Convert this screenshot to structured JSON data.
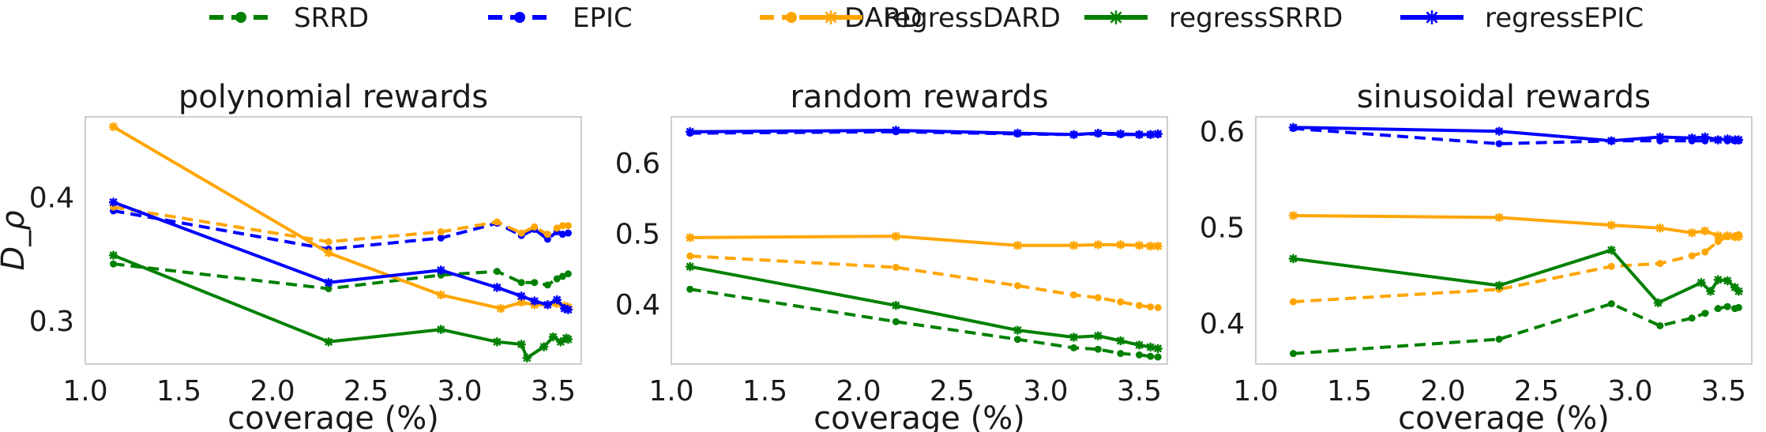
{
  "legend": [
    {
      "name": "SRRD",
      "color": "#008000",
      "dashed": true
    },
    {
      "name": "EPIC",
      "color": "#0000ff",
      "dashed": true
    },
    {
      "name": "DARD",
      "color": "#ffa500",
      "dashed": true
    },
    {
      "name": "regressDARD",
      "color": "#ffa500",
      "dashed": false
    },
    {
      "name": "regressSRRD",
      "color": "#008000",
      "dashed": false
    },
    {
      "name": "regressEPIC",
      "color": "#0000ff",
      "dashed": false
    }
  ],
  "chart_data": [
    {
      "type": "line",
      "title": "polynomial rewards",
      "xlabel": "coverage (%)",
      "ylabel": "D_ρ",
      "xlim": [
        1.0,
        3.65
      ],
      "ylim": [
        0.265,
        0.465
      ],
      "xticks": [
        "1.0",
        "1.5",
        "2.0",
        "2.5",
        "3.0",
        "3.5"
      ],
      "yticks": [
        "0.3",
        "0.4"
      ],
      "series": [
        {
          "name": "SRRD",
          "x": [
            1.15,
            2.3,
            2.9,
            3.2,
            3.33,
            3.4,
            3.47,
            3.52,
            3.55,
            3.58
          ],
          "y": [
            0.346,
            0.326,
            0.337,
            0.34,
            0.331,
            0.331,
            0.329,
            0.334,
            0.336,
            0.338
          ]
        },
        {
          "name": "EPIC",
          "x": [
            1.15,
            2.3,
            2.9,
            3.2,
            3.33,
            3.4,
            3.47,
            3.52,
            3.55,
            3.58
          ],
          "y": [
            0.389,
            0.358,
            0.367,
            0.379,
            0.369,
            0.374,
            0.366,
            0.372,
            0.37,
            0.371
          ]
        },
        {
          "name": "DARD",
          "x": [
            1.15,
            2.3,
            2.9,
            3.2,
            3.33,
            3.4,
            3.47,
            3.52,
            3.55,
            3.58
          ],
          "y": [
            0.392,
            0.364,
            0.372,
            0.38,
            0.371,
            0.376,
            0.37,
            0.375,
            0.377,
            0.377
          ]
        },
        {
          "name": "regressDARD",
          "x": [
            1.15,
            2.3,
            2.9,
            3.22,
            3.33,
            3.4,
            3.47,
            3.52,
            3.56,
            3.58
          ],
          "y": [
            0.457,
            0.355,
            0.321,
            0.31,
            0.315,
            0.313,
            0.313,
            0.314,
            0.312,
            0.311
          ]
        },
        {
          "name": "regressSRRD",
          "x": [
            1.15,
            2.3,
            2.9,
            3.2,
            3.33,
            3.36,
            3.45,
            3.5,
            3.54,
            3.57,
            3.58
          ],
          "y": [
            0.353,
            0.283,
            0.293,
            0.283,
            0.281,
            0.27,
            0.279,
            0.287,
            0.283,
            0.286,
            0.285
          ]
        },
        {
          "name": "regressEPIC",
          "x": [
            1.15,
            2.3,
            2.9,
            3.2,
            3.33,
            3.4,
            3.47,
            3.52,
            3.56,
            3.58
          ],
          "y": [
            0.396,
            0.331,
            0.341,
            0.327,
            0.32,
            0.316,
            0.313,
            0.317,
            0.31,
            0.309
          ]
        }
      ]
    },
    {
      "type": "line",
      "title": "random rewards",
      "xlabel": "coverage (%)",
      "ylabel": "",
      "xlim": [
        1.0,
        3.65
      ],
      "ylim": [
        0.315,
        0.665
      ],
      "xticks": [
        "1.0",
        "1.5",
        "2.0",
        "2.5",
        "3.0",
        "3.5"
      ],
      "yticks": [
        "0.4",
        "0.5",
        "0.6"
      ],
      "series": [
        {
          "name": "SRRD",
          "x": [
            1.1,
            2.2,
            2.85,
            3.15,
            3.28,
            3.4,
            3.5,
            3.56,
            3.6
          ],
          "y": [
            0.421,
            0.375,
            0.35,
            0.338,
            0.336,
            0.33,
            0.328,
            0.326,
            0.325
          ]
        },
        {
          "name": "EPIC",
          "x": [
            1.1,
            2.2,
            2.85,
            3.15,
            3.28,
            3.4,
            3.5,
            3.56,
            3.6
          ],
          "y": [
            0.642,
            0.644,
            0.641,
            0.64,
            0.641,
            0.64,
            0.64,
            0.64,
            0.64
          ]
        },
        {
          "name": "DARD",
          "x": [
            1.1,
            2.2,
            2.85,
            3.15,
            3.28,
            3.4,
            3.5,
            3.56,
            3.6
          ],
          "y": [
            0.468,
            0.452,
            0.426,
            0.413,
            0.409,
            0.403,
            0.398,
            0.396,
            0.395
          ]
        },
        {
          "name": "regressDARD",
          "x": [
            1.1,
            2.2,
            2.85,
            3.15,
            3.28,
            3.4,
            3.5,
            3.56,
            3.6
          ],
          "y": [
            0.494,
            0.496,
            0.483,
            0.483,
            0.484,
            0.484,
            0.483,
            0.482,
            0.482
          ]
        },
        {
          "name": "regressSRRD",
          "x": [
            1.1,
            2.2,
            2.85,
            3.15,
            3.28,
            3.4,
            3.5,
            3.56,
            3.6
          ],
          "y": [
            0.453,
            0.398,
            0.363,
            0.353,
            0.355,
            0.348,
            0.342,
            0.339,
            0.337
          ]
        },
        {
          "name": "regressEPIC",
          "x": [
            1.1,
            2.2,
            2.85,
            3.15,
            3.28,
            3.4,
            3.5,
            3.56,
            3.6
          ],
          "y": [
            0.644,
            0.646,
            0.642,
            0.64,
            0.642,
            0.641,
            0.64,
            0.64,
            0.641
          ]
        }
      ]
    },
    {
      "type": "line",
      "title": "sinusoidal rewards",
      "xlabel": "coverage (%)",
      "ylabel": "",
      "xlim": [
        1.0,
        3.65
      ],
      "ylim": [
        0.357,
        0.615
      ],
      "xticks": [
        "1.0",
        "1.5",
        "2.0",
        "2.5",
        "3.0",
        "3.5"
      ],
      "yticks": [
        "0.4",
        "0.5",
        "0.6"
      ],
      "series": [
        {
          "name": "SRRD",
          "x": [
            1.2,
            2.3,
            2.9,
            3.16,
            3.33,
            3.4,
            3.47,
            3.52,
            3.56,
            3.58
          ],
          "y": [
            0.368,
            0.383,
            0.42,
            0.397,
            0.405,
            0.41,
            0.415,
            0.417,
            0.415,
            0.416
          ]
        },
        {
          "name": "EPIC",
          "x": [
            1.2,
            2.3,
            2.9,
            3.16,
            3.33,
            3.4,
            3.47,
            3.52,
            3.56,
            3.58
          ],
          "y": [
            0.603,
            0.587,
            0.59,
            0.59,
            0.59,
            0.59,
            0.591,
            0.59,
            0.59,
            0.59
          ]
        },
        {
          "name": "DARD",
          "x": [
            1.2,
            2.3,
            2.9,
            3.16,
            3.33,
            3.4,
            3.47,
            3.52,
            3.56,
            3.58
          ],
          "y": [
            0.422,
            0.435,
            0.459,
            0.462,
            0.47,
            0.474,
            0.485,
            0.49,
            0.49,
            0.492
          ]
        },
        {
          "name": "regressDARD",
          "x": [
            1.2,
            2.3,
            2.9,
            3.16,
            3.33,
            3.4,
            3.47,
            3.52,
            3.56,
            3.58
          ],
          "y": [
            0.512,
            0.51,
            0.502,
            0.499,
            0.494,
            0.496,
            0.491,
            0.491,
            0.49,
            0.49
          ]
        },
        {
          "name": "regressSRRD",
          "x": [
            1.2,
            2.3,
            2.9,
            3.15,
            3.38,
            3.43,
            3.47,
            3.52,
            3.56,
            3.58
          ],
          "y": [
            0.467,
            0.439,
            0.476,
            0.421,
            0.442,
            0.433,
            0.445,
            0.444,
            0.437,
            0.433
          ]
        },
        {
          "name": "regressEPIC",
          "x": [
            1.2,
            2.3,
            2.9,
            3.16,
            3.33,
            3.4,
            3.47,
            3.52,
            3.56,
            3.58
          ],
          "y": [
            0.604,
            0.6,
            0.59,
            0.594,
            0.593,
            0.594,
            0.591,
            0.592,
            0.591,
            0.591
          ]
        }
      ]
    }
  ]
}
